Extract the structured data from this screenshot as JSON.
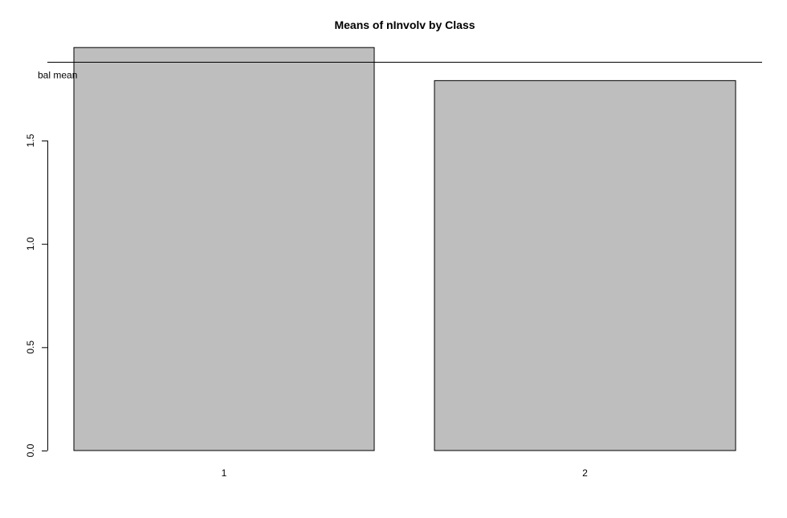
{
  "chart_data": {
    "type": "bar",
    "title": "Means of nInvolv by Class",
    "xlabel": "",
    "ylabel": "",
    "categories": [
      "1",
      "2"
    ],
    "values": [
      1.95,
      1.79
    ],
    "ylim": [
      0,
      1.95
    ],
    "yticks": [
      "0.0",
      "0.5",
      "1.0",
      "1.5"
    ],
    "reference_line": {
      "label": "bal mean",
      "value": 1.88
    },
    "bar_fill": "#bebebe",
    "bar_stroke": "#000000",
    "grid": false
  }
}
